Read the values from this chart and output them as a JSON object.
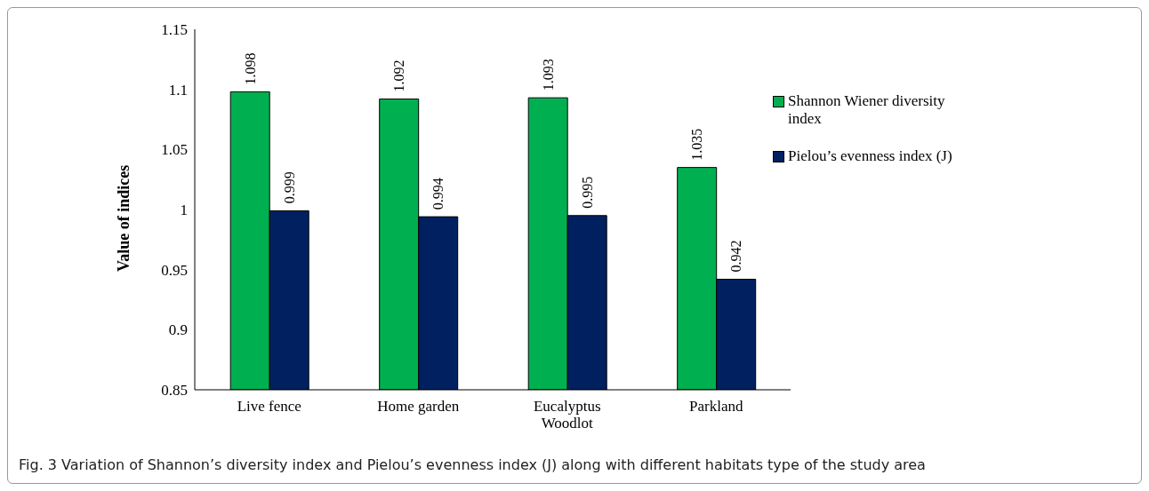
{
  "chart_data": {
    "type": "bar",
    "ylabel": "Value of indices",
    "categories": [
      "Live fence",
      "Home garden",
      "Eucalyptus Woodlot",
      "Parkland"
    ],
    "series": [
      {
        "name": "Shannon Wiener diversity index",
        "color": "#00b050",
        "values": [
          1.098,
          1.092,
          1.093,
          1.035
        ]
      },
      {
        "name": "Pielou’s evenness index (J)",
        "color": "#002060",
        "values": [
          0.999,
          0.994,
          0.995,
          0.942
        ]
      }
    ],
    "ylim": [
      0.85,
      1.15
    ],
    "yticks": [
      0.85,
      0.9,
      0.95,
      1,
      1.05,
      1.1,
      1.15
    ],
    "legend": "right",
    "data_labels": true,
    "annotations": [
      "Fig. 3 Variation of Shannon’s diversity index and Pielou’s evenness index (J) along with different habitats type of the study area"
    ]
  }
}
